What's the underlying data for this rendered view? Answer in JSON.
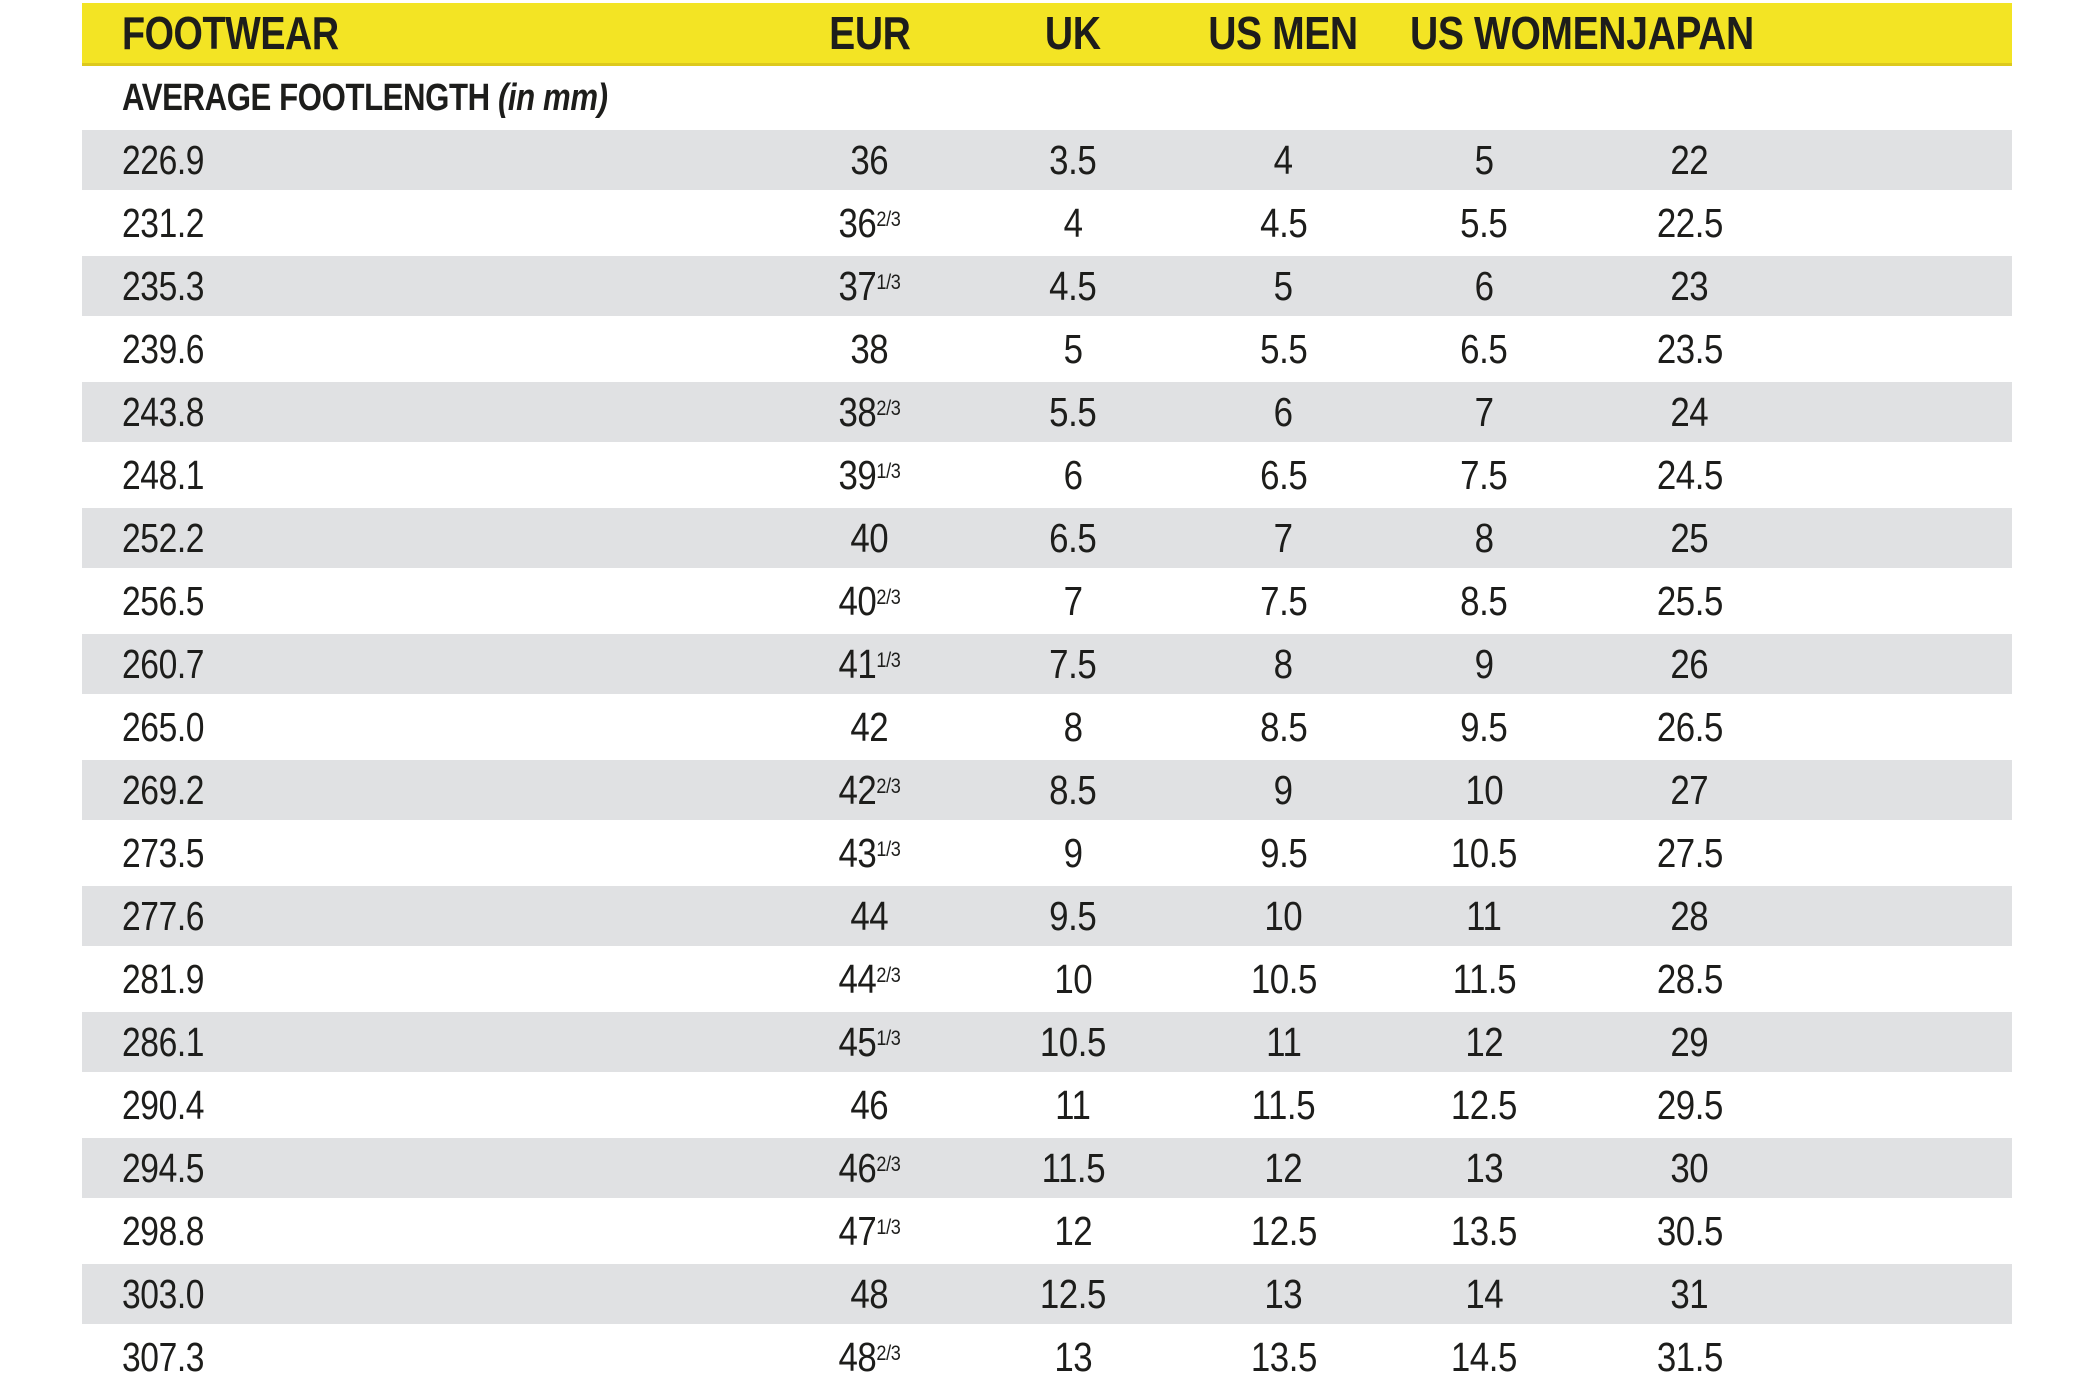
{
  "colors": {
    "header_yellow": "#f3e424",
    "header_yellow_edge": "#ddc91d",
    "row_gray": "#e0e1e3",
    "row_white": "#ffffff",
    "text_black": "#1d1d1b"
  },
  "table": {
    "columns": [
      {
        "key": "footwear",
        "label": "FOOTWEAR"
      },
      {
        "key": "eur",
        "label": "EUR"
      },
      {
        "key": "uk",
        "label": "UK"
      },
      {
        "key": "us_men",
        "label": "US MEN"
      },
      {
        "key": "us_women",
        "label": "US WOMEN"
      },
      {
        "key": "japan",
        "label": "JAPAN"
      }
    ],
    "subheader": {
      "title": "AVERAGE FOOTLENGTH",
      "unit_note": "(in mm)"
    },
    "rows": [
      [
        "226.9",
        "36",
        "3.5",
        "4",
        "5",
        "22"
      ],
      [
        "231.2",
        "36^2/3",
        "4",
        "4.5",
        "5.5",
        "22.5"
      ],
      [
        "235.3",
        "37^1/3",
        "4.5",
        "5",
        "6",
        "23"
      ],
      [
        "239.6",
        "38",
        "5",
        "5.5",
        "6.5",
        "23.5"
      ],
      [
        "243.8",
        "38^2/3",
        "5.5",
        "6",
        "7",
        "24"
      ],
      [
        "248.1",
        "39^1/3",
        "6",
        "6.5",
        "7.5",
        "24.5"
      ],
      [
        "252.2",
        "40",
        "6.5",
        "7",
        "8",
        "25"
      ],
      [
        "256.5",
        "40^2/3",
        "7",
        "7.5",
        "8.5",
        "25.5"
      ],
      [
        "260.7",
        "41^1/3",
        "7.5",
        "8",
        "9",
        "26"
      ],
      [
        "265.0",
        "42",
        "8",
        "8.5",
        "9.5",
        "26.5"
      ],
      [
        "269.2",
        "42^2/3",
        "8.5",
        "9",
        "10",
        "27"
      ],
      [
        "273.5",
        "43^1/3",
        "9",
        "9.5",
        "10.5",
        "27.5"
      ],
      [
        "277.6",
        "44",
        "9.5",
        "10",
        "11",
        "28"
      ],
      [
        "281.9",
        "44^2/3",
        "10",
        "10.5",
        "11.5",
        "28.5"
      ],
      [
        "286.1",
        "45^1/3",
        "10.5",
        "11",
        "12",
        "29"
      ],
      [
        "290.4",
        "46",
        "11",
        "11.5",
        "12.5",
        "29.5"
      ],
      [
        "294.5",
        "46^2/3",
        "11.5",
        "12",
        "13",
        "30"
      ],
      [
        "298.8",
        "47^1/3",
        "12",
        "12.5",
        "13.5",
        "30.5"
      ],
      [
        "303.0",
        "48",
        "12.5",
        "13",
        "14",
        "31"
      ],
      [
        "307.3",
        "48^2/3",
        "13",
        "13.5",
        "14.5",
        "31.5"
      ]
    ]
  }
}
